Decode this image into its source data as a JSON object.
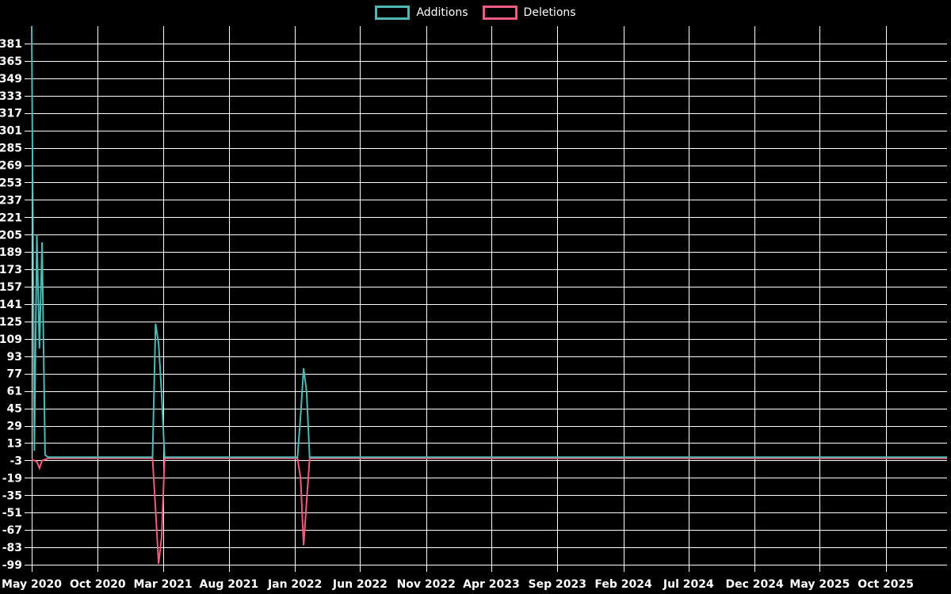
{
  "legend": {
    "items": [
      {
        "label": "Additions",
        "color": "#4fbab4"
      },
      {
        "label": "Deletions",
        "color": "#ee5d7d"
      }
    ]
  },
  "chart_data": {
    "type": "line",
    "title": "",
    "background_color": "#000000",
    "grid": true,
    "grid_color": "#ffffff",
    "text_color": "#ffffff",
    "legend_position": "top-center",
    "y_axis": {
      "ticks": [
        381,
        365,
        349,
        333,
        317,
        301,
        285,
        269,
        253,
        237,
        221,
        205,
        189,
        173,
        157,
        141,
        125,
        109,
        93,
        77,
        61,
        45,
        29,
        13,
        -3,
        -19,
        -35,
        -51,
        -67,
        -83,
        -99
      ],
      "min": -99,
      "max": 397
    },
    "x_axis": {
      "range_start": "2020-05-10",
      "range_end": "2026-03-01",
      "ticks": [
        {
          "label": "May 2020",
          "date": "2020-05-10"
        },
        {
          "label": "Oct 2020",
          "date": "2020-10-10"
        },
        {
          "label": "Mar 2021",
          "date": "2021-03-10"
        },
        {
          "label": "Aug 2021",
          "date": "2021-08-10"
        },
        {
          "label": "Jan 2022",
          "date": "2022-01-10"
        },
        {
          "label": "Jun 2022",
          "date": "2022-06-10"
        },
        {
          "label": "Nov 2022",
          "date": "2022-11-10"
        },
        {
          "label": "Apr 2023",
          "date": "2023-04-10"
        },
        {
          "label": "Sep 2023",
          "date": "2023-09-10"
        },
        {
          "label": "Feb 2024",
          "date": "2024-02-10"
        },
        {
          "label": "Jul 2024",
          "date": "2024-07-10"
        },
        {
          "label": "Dec 2024",
          "date": "2024-12-10"
        },
        {
          "label": "May 2025",
          "date": "2025-05-10"
        },
        {
          "label": "Oct 2025",
          "date": "2025-10-10"
        }
      ]
    },
    "series": [
      {
        "name": "Additions",
        "color": "#4fbab4",
        "points": [
          [
            "2020-05-10",
            397
          ],
          [
            "2020-05-16",
            6
          ],
          [
            "2020-05-22",
            205
          ],
          [
            "2020-05-28",
            100
          ],
          [
            "2020-06-03",
            198
          ],
          [
            "2020-06-10",
            2
          ],
          [
            "2020-06-17",
            0
          ],
          [
            "2021-02-14",
            0
          ],
          [
            "2021-02-21",
            123
          ],
          [
            "2021-02-28",
            105
          ],
          [
            "2021-03-07",
            59
          ],
          [
            "2021-03-14",
            0
          ],
          [
            "2022-01-16",
            0
          ],
          [
            "2022-01-23",
            38
          ],
          [
            "2022-01-30",
            82
          ],
          [
            "2022-02-06",
            60
          ],
          [
            "2022-02-13",
            0
          ],
          [
            "2026-03-01",
            0
          ]
        ]
      },
      {
        "name": "Deletions",
        "color": "#ee5d7d",
        "points": [
          [
            "2020-05-10",
            -1
          ],
          [
            "2020-05-16",
            -2
          ],
          [
            "2020-05-22",
            -3
          ],
          [
            "2020-05-28",
            -9
          ],
          [
            "2020-06-03",
            -2
          ],
          [
            "2020-06-10",
            -1
          ],
          [
            "2020-06-17",
            0
          ],
          [
            "2021-02-14",
            0
          ],
          [
            "2021-02-21",
            -47
          ],
          [
            "2021-02-28",
            -97
          ],
          [
            "2021-03-07",
            -73
          ],
          [
            "2021-03-14",
            0
          ],
          [
            "2022-01-16",
            0
          ],
          [
            "2022-01-23",
            -18
          ],
          [
            "2022-01-30",
            -80
          ],
          [
            "2022-02-06",
            -40
          ],
          [
            "2022-02-13",
            0
          ],
          [
            "2026-03-01",
            0
          ]
        ]
      }
    ]
  }
}
